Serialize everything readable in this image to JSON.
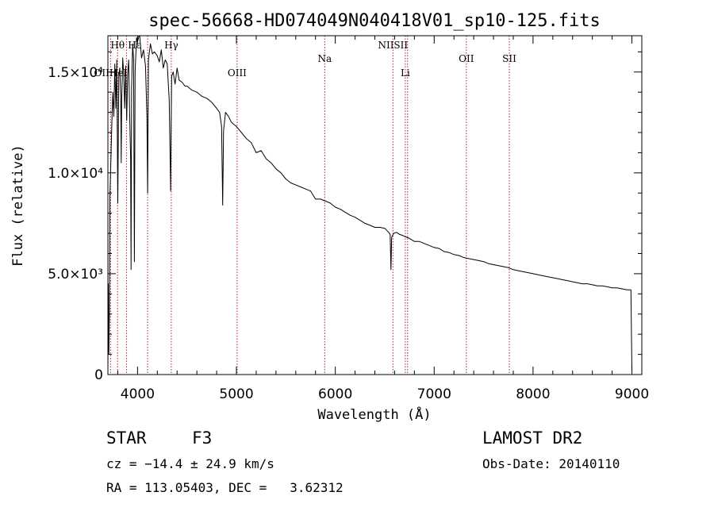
{
  "chart_data": {
    "type": "line",
    "title": "spec-56668-HD074049N040418V01_sp10-125.fits",
    "xlabel": "Wavelength (Å)",
    "ylabel": "Flux (relative)",
    "xlim": [
      3700,
      9100
    ],
    "ylim": [
      0,
      16800
    ],
    "x_ticks": [
      {
        "value": 4000,
        "label": "4000"
      },
      {
        "value": 5000,
        "label": "5000"
      },
      {
        "value": 6000,
        "label": "6000"
      },
      {
        "value": 7000,
        "label": "7000"
      },
      {
        "value": 8000,
        "label": "8000"
      },
      {
        "value": 9000,
        "label": "9000"
      }
    ],
    "y_ticks": [
      {
        "value": 0,
        "label": "0"
      },
      {
        "value": 5000,
        "label": "5.0×10³"
      },
      {
        "value": 10000,
        "label": "1.0×10⁴"
      },
      {
        "value": 15000,
        "label": "1.5×10⁴"
      }
    ],
    "grid": false,
    "series": [
      {
        "x": [
          3700,
          3705,
          3710,
          3715,
          3720,
          3730,
          3740,
          3750,
          3760,
          3770,
          3780,
          3790,
          3800,
          3810,
          3820,
          3830,
          3835,
          3840,
          3850,
          3860,
          3870,
          3880,
          3890,
          3900,
          3910,
          3920,
          3930,
          3934,
          3940,
          3950,
          3960,
          3968,
          3975,
          3990,
          4000,
          4020,
          4040,
          4060,
          4080,
          4095,
          4102,
          4110,
          4130,
          4150,
          4170,
          4200,
          4220,
          4240,
          4260,
          4280,
          4300,
          4320,
          4335,
          4340,
          4345,
          4360,
          4380,
          4400,
          4420,
          4450,
          4480,
          4500,
          4550,
          4600,
          4650,
          4700,
          4750,
          4800,
          4830,
          4850,
          4861,
          4870,
          4890,
          4920,
          4950,
          5000,
          5050,
          5100,
          5150,
          5200,
          5250,
          5300,
          5350,
          5400,
          5450,
          5500,
          5550,
          5600,
          5650,
          5700,
          5750,
          5800,
          5850,
          5900,
          5950,
          6000,
          6050,
          6100,
          6150,
          6200,
          6250,
          6300,
          6350,
          6400,
          6450,
          6500,
          6520,
          6540,
          6555,
          6563,
          6570,
          6590,
          6620,
          6650,
          6680,
          6700,
          6750,
          6800,
          6850,
          6900,
          6950,
          7000,
          7050,
          7100,
          7150,
          7200,
          7250,
          7300,
          7350,
          7400,
          7450,
          7500,
          7550,
          7600,
          7650,
          7700,
          7750,
          7800,
          7850,
          7900,
          7950,
          8000,
          8050,
          8100,
          8150,
          8200,
          8250,
          8300,
          8350,
          8400,
          8450,
          8500,
          8550,
          8600,
          8650,
          8700,
          8750,
          8800,
          8850,
          8900,
          8950,
          8990,
          9000
        ],
        "y": [
          200,
          4500,
          1000,
          3000,
          8800,
          10500,
          12500,
          14000,
          12800,
          15400,
          13200,
          15600,
          8500,
          14800,
          15200,
          13800,
          10500,
          13600,
          15700,
          14900,
          13200,
          15300,
          12600,
          14900,
          15600,
          13000,
          10600,
          5200,
          14200,
          16400,
          15600,
          5600,
          15000,
          16700,
          16500,
          16900,
          15700,
          16100,
          15300,
          12800,
          9000,
          15600,
          16400,
          15900,
          16000,
          15800,
          15500,
          16100,
          15200,
          15600,
          15400,
          13600,
          9100,
          12600,
          14800,
          15000,
          14400,
          15200,
          14600,
          14500,
          14300,
          14300,
          14100,
          14000,
          13800,
          13700,
          13500,
          13200,
          13000,
          12300,
          8400,
          12100,
          13000,
          12800,
          12500,
          12300,
          12000,
          11700,
          11500,
          11000,
          11100,
          10700,
          10500,
          10200,
          10000,
          9700,
          9500,
          9400,
          9300,
          9200,
          9100,
          8700,
          8700,
          8600,
          8500,
          8300,
          8200,
          8050,
          7900,
          7800,
          7650,
          7500,
          7400,
          7300,
          7300,
          7250,
          7150,
          7050,
          6950,
          5200,
          6800,
          7000,
          7050,
          6950,
          6900,
          6850,
          6750,
          6600,
          6600,
          6500,
          6400,
          6300,
          6250,
          6100,
          6050,
          5950,
          5900,
          5800,
          5750,
          5700,
          5650,
          5600,
          5500,
          5450,
          5400,
          5350,
          5300,
          5200,
          5150,
          5100,
          5050,
          5000,
          4950,
          4900,
          4850,
          4800,
          4750,
          4700,
          4650,
          4600,
          4550,
          4500,
          4500,
          4450,
          4400,
          4400,
          4350,
          4300,
          4300,
          4250,
          4200,
          4200,
          200
        ]
      }
    ],
    "annotations": [
      {
        "label": "Hθ",
        "x": 3798,
        "row": "top"
      },
      {
        "label": "Hε",
        "x": 3970,
        "row": "top"
      },
      {
        "label": "Hγ",
        "x": 4341,
        "row": "top"
      },
      {
        "label": "NIISII",
        "x": 6583,
        "row": "top"
      },
      {
        "label": "Na",
        "x": 5893,
        "row": "middle"
      },
      {
        "label": "OII",
        "x": 7325,
        "row": "middle"
      },
      {
        "label": "SII",
        "x": 7760,
        "row": "middle"
      },
      {
        "label": "OIIHeI",
        "x": 3727,
        "row": "bottom"
      },
      {
        "label": "OIII",
        "x": 5007,
        "row": "bottom"
      },
      {
        "label": "Li",
        "x": 6708,
        "row": "bottom"
      }
    ],
    "marker_lines": [
      3727,
      3798,
      3889,
      4102,
      4341,
      5007,
      5893,
      6583,
      6708,
      6731,
      7325,
      7760
    ]
  },
  "info": {
    "object_class": "STAR",
    "subclass": "F3",
    "survey": "LAMOST DR2",
    "redshift_line": "cz = −14.4 ± 24.9 km/s",
    "obs_date": "Obs-Date: 20140110",
    "coords": "RA = 113.05403, DEC =   3.62312"
  }
}
